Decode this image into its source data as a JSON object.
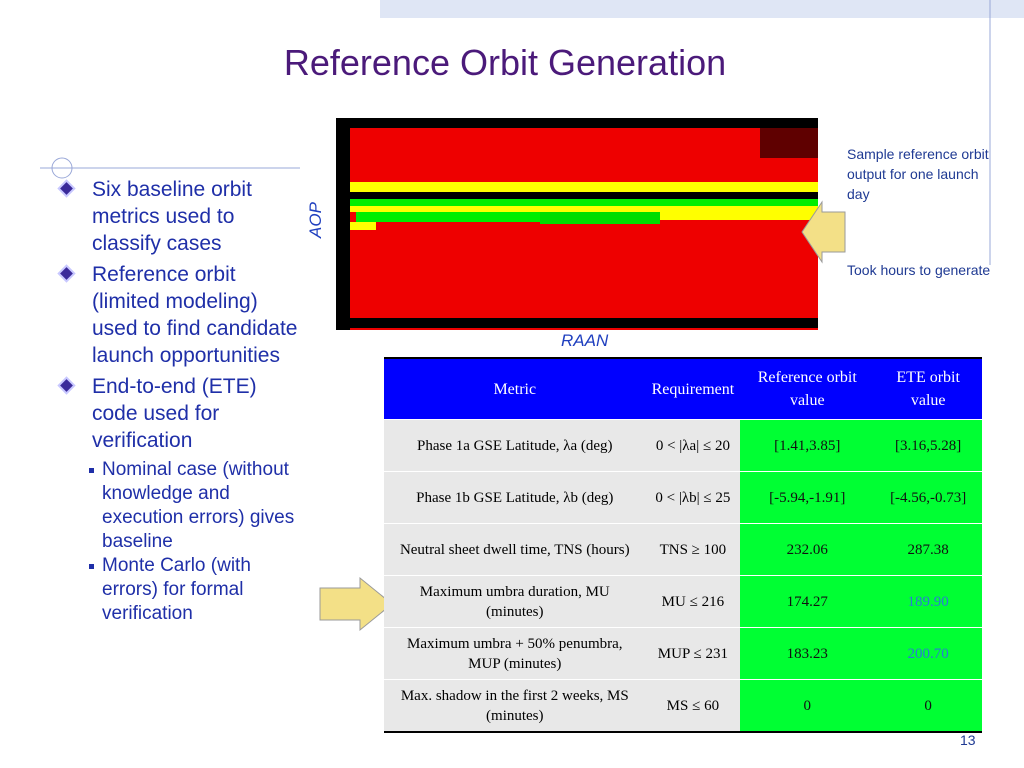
{
  "title": "Reference Orbit Generation",
  "bullets": [
    {
      "text": "Six baseline orbit metrics used to classify cases"
    },
    {
      "text": "Reference orbit (limited modeling) used to find candidate launch opportunities"
    },
    {
      "text": "End-to-end (ETE) code used for verification",
      "sub": [
        "Nominal case (without knowledge and execution errors) gives baseline",
        "Monte Carlo (with errors) for formal verification"
      ]
    }
  ],
  "figure": {
    "y_label": "AOP",
    "x_label": "RAAN",
    "notes": [
      "Sample reference orbit output for one launch day",
      "Took hours to generate"
    ]
  },
  "table": {
    "header": [
      "Metric",
      "Requirement",
      "Reference orbit value",
      "ETE orbit value"
    ],
    "rows": [
      [
        "Phase 1a GSE Latitude, λa (deg)",
        "0 < |λa| ≤ 20",
        "[1.41,3.85]",
        "[3.16,5.28]"
      ],
      [
        "Phase 1b GSE Latitude, λb (deg)",
        "0 < |λb| ≤ 25",
        "[-5.94,-1.91]",
        "[-4.56,-0.73]"
      ],
      [
        "Neutral sheet dwell time, TNS (hours)",
        "TNS ≥ 100",
        "232.06",
        "287.38"
      ],
      [
        "Maximum umbra duration, MU (minutes)",
        "MU ≤ 216",
        "174.27",
        "189.90"
      ],
      [
        "Maximum umbra + 50% penumbra, MUP (minutes)",
        "MUP ≤ 231",
        "183.23",
        "200.70"
      ],
      [
        "Max. shadow in the first 2 weeks, MS (minutes)",
        "MS ≤ 60",
        "0",
        "0"
      ]
    ]
  },
  "page_number": "13"
}
